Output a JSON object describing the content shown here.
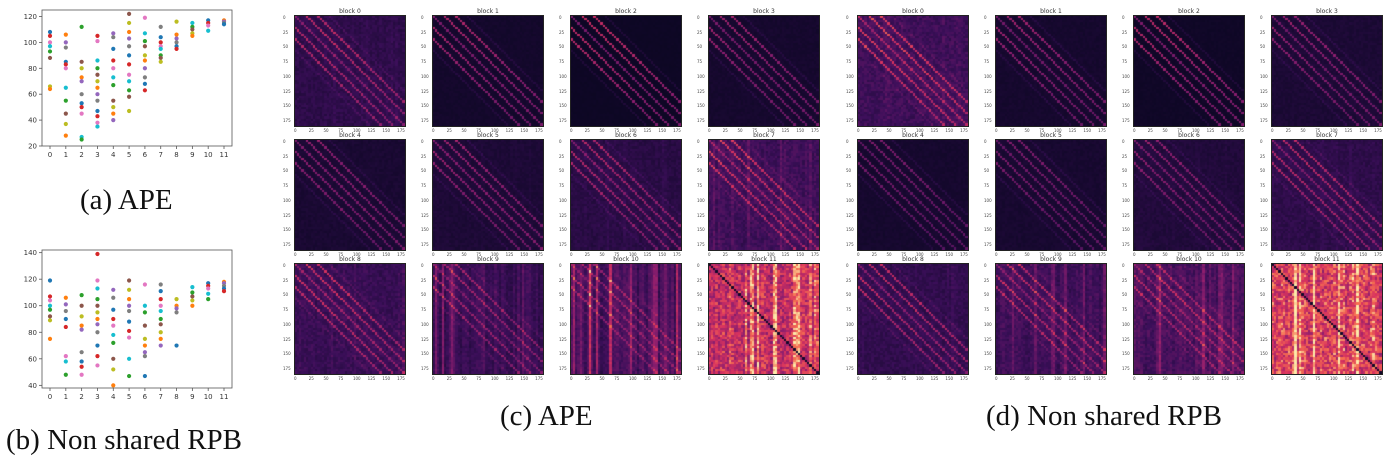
{
  "captions": {
    "a": "(a) APE",
    "b": "(b) Non shared RPB",
    "c": "(c) APE",
    "d": "(d) Non shared RPB"
  },
  "chart_data": [
    {
      "type": "scatter",
      "name": "APE",
      "xlabel": "",
      "ylabel": "",
      "xticks": [
        "0",
        "1",
        "2",
        "3",
        "4",
        "5",
        "6",
        "7",
        "8",
        "9",
        "10",
        "11"
      ],
      "yticks": [
        "20",
        "40",
        "60",
        "80",
        "100",
        "120"
      ],
      "ylim": [
        20,
        125
      ],
      "series": [
        {
          "x": 0,
          "y": [
            108,
            105,
            100,
            97,
            93,
            88,
            66,
            64
          ]
        },
        {
          "x": 1,
          "y": [
            106,
            100,
            96,
            85,
            83,
            80,
            65,
            55,
            45,
            37,
            28
          ]
        },
        {
          "x": 2,
          "y": [
            112,
            85,
            80,
            73,
            70,
            60,
            53,
            50,
            45,
            27,
            25
          ]
        },
        {
          "x": 3,
          "y": [
            105,
            101,
            86,
            80,
            75,
            70,
            65,
            60,
            55,
            47,
            43,
            38,
            35
          ]
        },
        {
          "x": 4,
          "y": [
            107,
            104,
            95,
            86,
            80,
            73,
            67,
            55,
            50,
            45,
            40
          ]
        },
        {
          "x": 5,
          "y": [
            122,
            115,
            108,
            103,
            97,
            90,
            83,
            75,
            70,
            63,
            58,
            47
          ]
        },
        {
          "x": 6,
          "y": [
            119,
            107,
            101,
            97,
            90,
            86,
            80,
            73,
            68,
            63
          ]
        },
        {
          "x": 7,
          "y": [
            112,
            104,
            100,
            97,
            95,
            90,
            88,
            85
          ]
        },
        {
          "x": 8,
          "y": [
            116,
            106,
            103,
            100,
            97,
            95
          ]
        },
        {
          "x": 9,
          "y": [
            115,
            112,
            110,
            107,
            105
          ]
        },
        {
          "x": 10,
          "y": [
            117,
            115,
            113,
            109
          ]
        },
        {
          "x": 11,
          "y": [
            117,
            116,
            115,
            114
          ]
        }
      ]
    },
    {
      "type": "scatter",
      "name": "Non shared RPB",
      "xlabel": "",
      "ylabel": "",
      "xticks": [
        "0",
        "1",
        "2",
        "3",
        "4",
        "5",
        "6",
        "7",
        "8",
        "9",
        "10",
        "11"
      ],
      "yticks": [
        "40",
        "60",
        "80",
        "100",
        "120",
        "140"
      ],
      "ylim": [
        38,
        142
      ],
      "series": [
        {
          "x": 0,
          "y": [
            119,
            107,
            104,
            100,
            97,
            92,
            89,
            75
          ]
        },
        {
          "x": 1,
          "y": [
            106,
            101,
            96,
            90,
            84,
            62,
            58,
            48
          ]
        },
        {
          "x": 2,
          "y": [
            108,
            100,
            92,
            85,
            82,
            65,
            58,
            54,
            48
          ]
        },
        {
          "x": 3,
          "y": [
            139,
            119,
            113,
            105,
            100,
            95,
            90,
            86,
            80,
            70,
            62,
            55
          ]
        },
        {
          "x": 4,
          "y": [
            112,
            106,
            97,
            90,
            85,
            78,
            72,
            60,
            52,
            40
          ]
        },
        {
          "x": 5,
          "y": [
            119,
            112,
            105,
            100,
            96,
            88,
            81,
            76,
            60,
            47
          ]
        },
        {
          "x": 6,
          "y": [
            116,
            100,
            95,
            85,
            75,
            70,
            65,
            62,
            47
          ]
        },
        {
          "x": 7,
          "y": [
            116,
            111,
            105,
            100,
            96,
            90,
            86,
            80,
            75,
            70
          ]
        },
        {
          "x": 8,
          "y": [
            105,
            100,
            98,
            95,
            70
          ]
        },
        {
          "x": 9,
          "y": [
            114,
            110,
            107,
            104,
            100
          ]
        },
        {
          "x": 10,
          "y": [
            117,
            115,
            113,
            109,
            105
          ]
        },
        {
          "x": 11,
          "y": [
            118,
            117,
            115,
            113,
            111
          ]
        }
      ]
    }
  ],
  "heatmaps": {
    "tick_labels_x": [
      "0",
      "25",
      "50",
      "75",
      "100",
      "125",
      "150",
      "175"
    ],
    "tick_labels_y": [
      "0",
      "25",
      "50",
      "75",
      "100",
      "125",
      "150",
      "175"
    ],
    "ape": [
      {
        "title": "block 0",
        "diag": 0.55,
        "off": 0.35,
        "bg": 0.18,
        "vstripes": 0.05
      },
      {
        "title": "block 1",
        "diag": 0.75,
        "off": 0.45,
        "bg": 0.06,
        "vstripes": 0.0
      },
      {
        "title": "block 2",
        "diag": 0.8,
        "off": 0.55,
        "bg": 0.03,
        "vstripes": 0.0
      },
      {
        "title": "block 3",
        "diag": 0.7,
        "off": 0.4,
        "bg": 0.07,
        "vstripes": 0.0
      },
      {
        "title": "block 4",
        "diag": 0.7,
        "off": 0.35,
        "bg": 0.09,
        "vstripes": 0.0
      },
      {
        "title": "block 5",
        "diag": 0.7,
        "off": 0.35,
        "bg": 0.1,
        "vstripes": 0.02
      },
      {
        "title": "block 6",
        "diag": 0.6,
        "off": 0.35,
        "bg": 0.16,
        "vstripes": 0.05
      },
      {
        "title": "block 7",
        "diag": 0.55,
        "off": 0.35,
        "bg": 0.24,
        "vstripes": 0.12
      },
      {
        "title": "block 8",
        "diag": 0.55,
        "off": 0.35,
        "bg": 0.22,
        "vstripes": 0.1
      },
      {
        "title": "block 9",
        "diag": 0.4,
        "off": 0.25,
        "bg": 0.18,
        "vstripes": 0.35
      },
      {
        "title": "block 10",
        "diag": 0.35,
        "off": 0.2,
        "bg": 0.2,
        "vstripes": 0.5
      },
      {
        "title": "block 11",
        "diag": -0.5,
        "off": 0.0,
        "bg": 0.62,
        "vstripes": 0.35
      }
    ],
    "rpb": [
      {
        "title": "block 0",
        "diag": 0.6,
        "off": 0.4,
        "bg": 0.25,
        "vstripes": 0.05
      },
      {
        "title": "block 1",
        "diag": 0.65,
        "off": 0.4,
        "bg": 0.07,
        "vstripes": 0.0
      },
      {
        "title": "block 2",
        "diag": 0.8,
        "off": 0.5,
        "bg": 0.04,
        "vstripes": 0.0
      },
      {
        "title": "block 3",
        "diag": 0.6,
        "off": 0.35,
        "bg": 0.1,
        "vstripes": 0.0
      },
      {
        "title": "block 4",
        "diag": 0.6,
        "off": 0.3,
        "bg": 0.07,
        "vstripes": 0.0
      },
      {
        "title": "block 5",
        "diag": 0.6,
        "off": 0.3,
        "bg": 0.08,
        "vstripes": 0.0
      },
      {
        "title": "block 6",
        "diag": 0.6,
        "off": 0.3,
        "bg": 0.12,
        "vstripes": 0.02
      },
      {
        "title": "block 7",
        "diag": 0.55,
        "off": 0.35,
        "bg": 0.18,
        "vstripes": 0.05
      },
      {
        "title": "block 8",
        "diag": 0.55,
        "off": 0.35,
        "bg": 0.2,
        "vstripes": 0.05
      },
      {
        "title": "block 9",
        "diag": 0.45,
        "off": 0.3,
        "bg": 0.22,
        "vstripes": 0.2
      },
      {
        "title": "block 10",
        "diag": 0.4,
        "off": 0.25,
        "bg": 0.25,
        "vstripes": 0.3
      },
      {
        "title": "block 11",
        "diag": -0.6,
        "off": 0.0,
        "bg": 0.7,
        "vstripes": 0.4
      }
    ]
  },
  "colors": {
    "palette": [
      "#1f77b4",
      "#ff7f0e",
      "#2ca02c",
      "#d62728",
      "#9467bd",
      "#8c564b",
      "#e377c2",
      "#7f7f7f",
      "#bcbd22",
      "#17becf"
    ]
  }
}
